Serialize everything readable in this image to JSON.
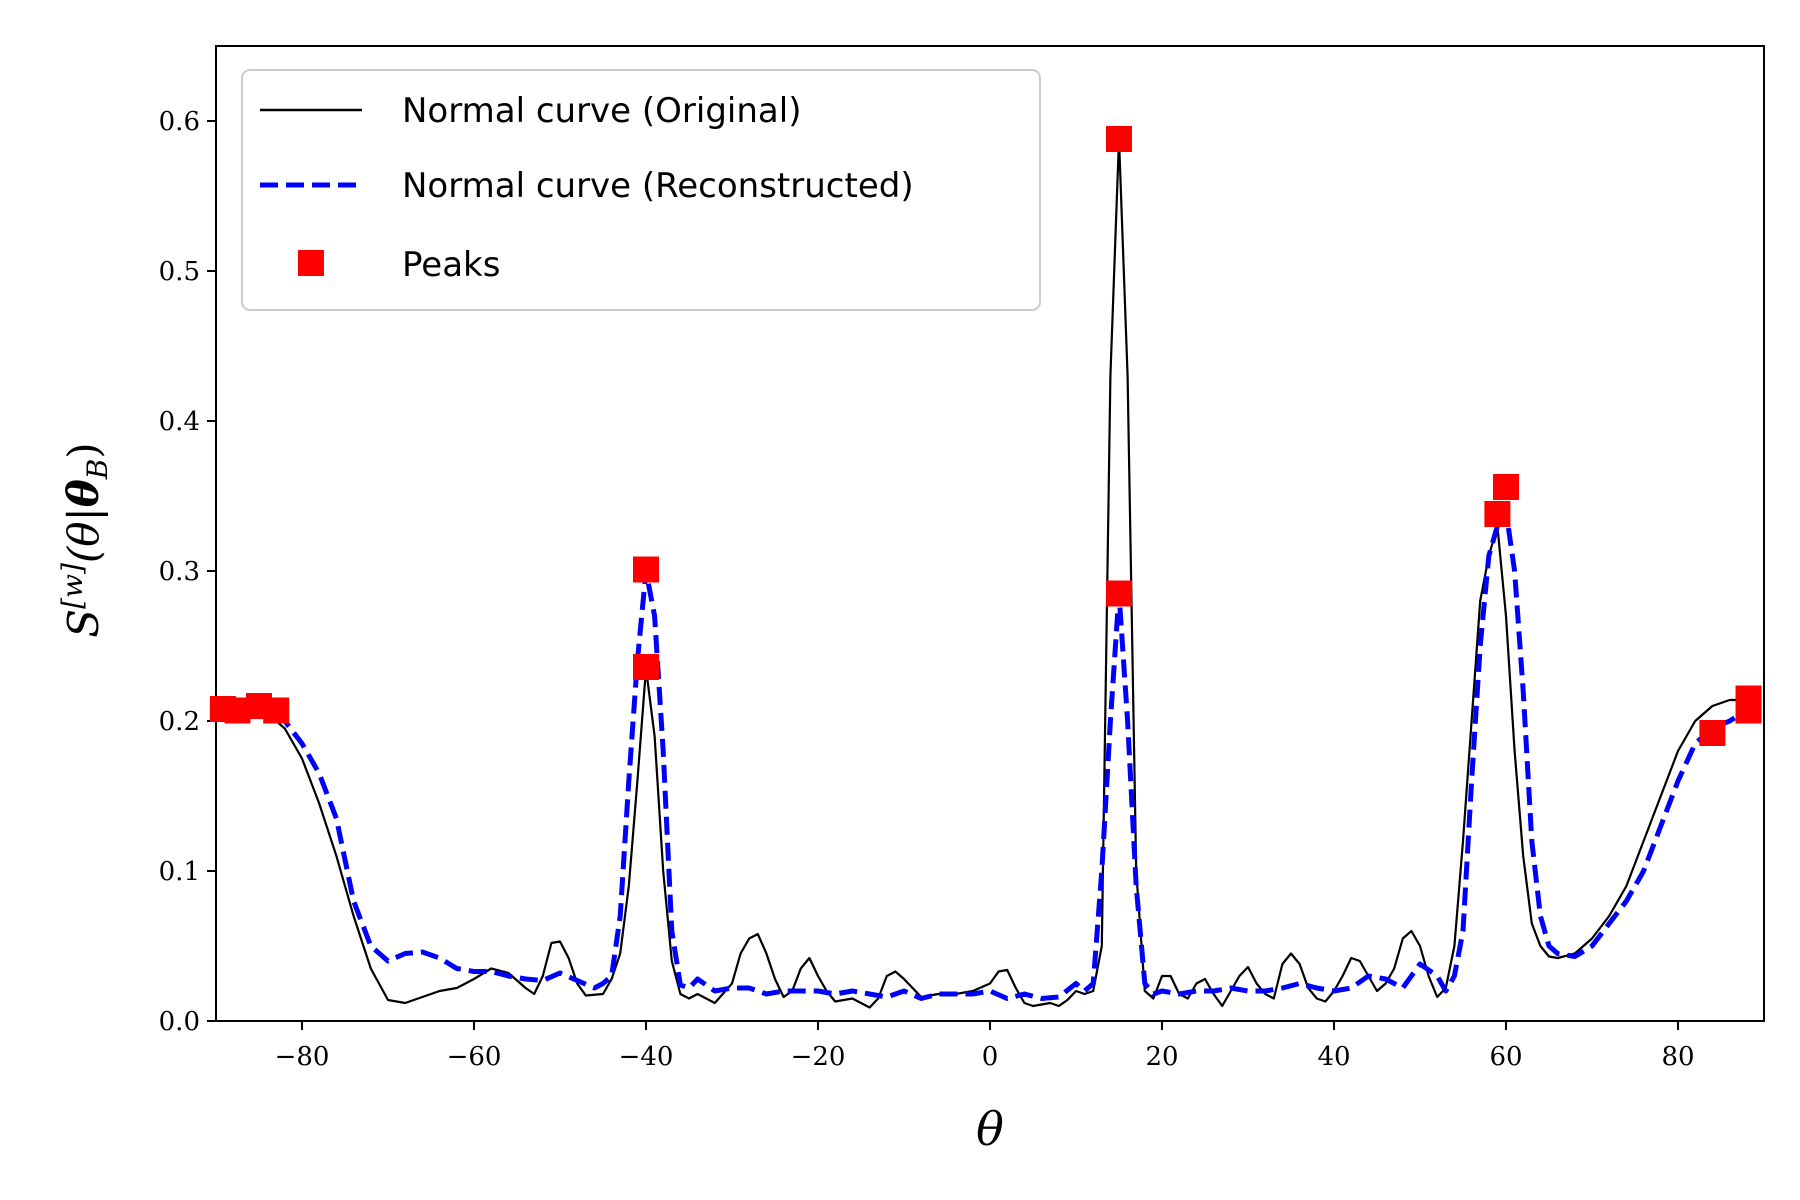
{
  "chart_data": {
    "type": "line",
    "xlabel": "θ",
    "ylabel": {
      "main": "S",
      "superscript": "[w]",
      "argument_open": "(θ|",
      "bold": "θ",
      "subscript": "B",
      "argument_close": ")"
    },
    "xlim": [
      -90,
      90
    ],
    "ylim": [
      0,
      0.65
    ],
    "xticks": [
      -80,
      -60,
      -40,
      -20,
      0,
      20,
      40,
      60,
      80
    ],
    "xtick_labels": [
      "−80",
      "−60",
      "−40",
      "−20",
      "0",
      "20",
      "40",
      "60",
      "80"
    ],
    "yticks": [
      0.0,
      0.1,
      0.2,
      0.3,
      0.4,
      0.5,
      0.6
    ],
    "ytick_labels": [
      "0.0",
      "0.1",
      "0.2",
      "0.3",
      "0.4",
      "0.5",
      "0.6"
    ],
    "legend_position": "top-left",
    "grid": false,
    "series": [
      {
        "name": "Normal curve (Original)",
        "style": "solid",
        "color": "#000000",
        "points": [
          [
            -89,
            0.208
          ],
          [
            -86,
            0.208
          ],
          [
            -84,
            0.205
          ],
          [
            -82,
            0.195
          ],
          [
            -80,
            0.175
          ],
          [
            -78,
            0.145
          ],
          [
            -76,
            0.11
          ],
          [
            -74,
            0.07
          ],
          [
            -72,
            0.035
          ],
          [
            -70,
            0.014
          ],
          [
            -68,
            0.012
          ],
          [
            -66,
            0.016
          ],
          [
            -64,
            0.02
          ],
          [
            -62,
            0.022
          ],
          [
            -60,
            0.028
          ],
          [
            -58,
            0.035
          ],
          [
            -56,
            0.032
          ],
          [
            -54,
            0.022
          ],
          [
            -53,
            0.018
          ],
          [
            -52,
            0.03
          ],
          [
            -51,
            0.052
          ],
          [
            -50,
            0.053
          ],
          [
            -49,
            0.042
          ],
          [
            -48,
            0.025
          ],
          [
            -47,
            0.017
          ],
          [
            -45,
            0.018
          ],
          [
            -44,
            0.028
          ],
          [
            -43,
            0.045
          ],
          [
            -42,
            0.09
          ],
          [
            -41,
            0.16
          ],
          [
            -40,
            0.235
          ],
          [
            -39,
            0.19
          ],
          [
            -38,
            0.1
          ],
          [
            -37,
            0.04
          ],
          [
            -36,
            0.018
          ],
          [
            -35,
            0.015
          ],
          [
            -34,
            0.018
          ],
          [
            -32,
            0.012
          ],
          [
            -30,
            0.025
          ],
          [
            -29,
            0.045
          ],
          [
            -28,
            0.055
          ],
          [
            -27,
            0.058
          ],
          [
            -26,
            0.045
          ],
          [
            -25,
            0.028
          ],
          [
            -24,
            0.016
          ],
          [
            -23,
            0.02
          ],
          [
            -22,
            0.035
          ],
          [
            -21,
            0.042
          ],
          [
            -20,
            0.03
          ],
          [
            -19,
            0.02
          ],
          [
            -18,
            0.013
          ],
          [
            -16,
            0.015
          ],
          [
            -14,
            0.009
          ],
          [
            -13,
            0.015
          ],
          [
            -12,
            0.03
          ],
          [
            -11,
            0.033
          ],
          [
            -10,
            0.028
          ],
          [
            -8,
            0.016
          ],
          [
            -6,
            0.018
          ],
          [
            -4,
            0.018
          ],
          [
            -2,
            0.02
          ],
          [
            0,
            0.025
          ],
          [
            1,
            0.033
          ],
          [
            2,
            0.034
          ],
          [
            3,
            0.022
          ],
          [
            4,
            0.012
          ],
          [
            5,
            0.01
          ],
          [
            6,
            0.011
          ],
          [
            7,
            0.012
          ],
          [
            8,
            0.01
          ],
          [
            9,
            0.014
          ],
          [
            10,
            0.02
          ],
          [
            11,
            0.018
          ],
          [
            12,
            0.02
          ],
          [
            13,
            0.05
          ],
          [
            14,
            0.43
          ],
          [
            15,
            0.588
          ],
          [
            16,
            0.43
          ],
          [
            17,
            0.1
          ],
          [
            18,
            0.02
          ],
          [
            19,
            0.015
          ],
          [
            20,
            0.03
          ],
          [
            21,
            0.03
          ],
          [
            22,
            0.018
          ],
          [
            23,
            0.015
          ],
          [
            24,
            0.025
          ],
          [
            25,
            0.028
          ],
          [
            26,
            0.018
          ],
          [
            27,
            0.01
          ],
          [
            28,
            0.02
          ],
          [
            29,
            0.03
          ],
          [
            30,
            0.036
          ],
          [
            31,
            0.025
          ],
          [
            32,
            0.018
          ],
          [
            33,
            0.015
          ],
          [
            34,
            0.038
          ],
          [
            35,
            0.045
          ],
          [
            36,
            0.038
          ],
          [
            37,
            0.022
          ],
          [
            38,
            0.015
          ],
          [
            39,
            0.013
          ],
          [
            40,
            0.02
          ],
          [
            41,
            0.03
          ],
          [
            42,
            0.042
          ],
          [
            43,
            0.04
          ],
          [
            44,
            0.03
          ],
          [
            45,
            0.02
          ],
          [
            46,
            0.025
          ],
          [
            47,
            0.035
          ],
          [
            48,
            0.055
          ],
          [
            49,
            0.06
          ],
          [
            50,
            0.05
          ],
          [
            51,
            0.03
          ],
          [
            52,
            0.016
          ],
          [
            53,
            0.022
          ],
          [
            54,
            0.05
          ],
          [
            55,
            0.12
          ],
          [
            56,
            0.2
          ],
          [
            57,
            0.28
          ],
          [
            58,
            0.31
          ],
          [
            59,
            0.33
          ],
          [
            60,
            0.27
          ],
          [
            61,
            0.18
          ],
          [
            62,
            0.11
          ],
          [
            63,
            0.065
          ],
          [
            64,
            0.05
          ],
          [
            65,
            0.043
          ],
          [
            66,
            0.042
          ],
          [
            68,
            0.045
          ],
          [
            70,
            0.055
          ],
          [
            72,
            0.07
          ],
          [
            74,
            0.09
          ],
          [
            76,
            0.12
          ],
          [
            78,
            0.15
          ],
          [
            80,
            0.18
          ],
          [
            82,
            0.2
          ],
          [
            84,
            0.21
          ],
          [
            86,
            0.214
          ],
          [
            88,
            0.214
          ]
        ]
      },
      {
        "name": "Normal curve (Reconstructed)",
        "style": "dashed",
        "color": "#0000ff",
        "points": [
          [
            -89,
            0.207
          ],
          [
            -86,
            0.207
          ],
          [
            -84,
            0.207
          ],
          [
            -82,
            0.2
          ],
          [
            -80,
            0.185
          ],
          [
            -78,
            0.165
          ],
          [
            -76,
            0.135
          ],
          [
            -74,
            0.08
          ],
          [
            -72,
            0.05
          ],
          [
            -70,
            0.04
          ],
          [
            -68,
            0.045
          ],
          [
            -66,
            0.046
          ],
          [
            -64,
            0.042
          ],
          [
            -62,
            0.035
          ],
          [
            -60,
            0.033
          ],
          [
            -58,
            0.033
          ],
          [
            -56,
            0.03
          ],
          [
            -54,
            0.028
          ],
          [
            -52,
            0.027
          ],
          [
            -50,
            0.032
          ],
          [
            -48,
            0.027
          ],
          [
            -46,
            0.022
          ],
          [
            -45,
            0.025
          ],
          [
            -44,
            0.03
          ],
          [
            -43,
            0.07
          ],
          [
            -42,
            0.16
          ],
          [
            -41,
            0.24
          ],
          [
            -40,
            0.3
          ],
          [
            -39,
            0.27
          ],
          [
            -38,
            0.18
          ],
          [
            -37,
            0.06
          ],
          [
            -36,
            0.024
          ],
          [
            -35,
            0.022
          ],
          [
            -34,
            0.028
          ],
          [
            -32,
            0.02
          ],
          [
            -30,
            0.022
          ],
          [
            -28,
            0.022
          ],
          [
            -26,
            0.018
          ],
          [
            -24,
            0.02
          ],
          [
            -22,
            0.02
          ],
          [
            -20,
            0.02
          ],
          [
            -18,
            0.018
          ],
          [
            -16,
            0.02
          ],
          [
            -14,
            0.018
          ],
          [
            -12,
            0.016
          ],
          [
            -10,
            0.02
          ],
          [
            -8,
            0.015
          ],
          [
            -6,
            0.018
          ],
          [
            -4,
            0.018
          ],
          [
            -2,
            0.018
          ],
          [
            0,
            0.02
          ],
          [
            2,
            0.015
          ],
          [
            4,
            0.018
          ],
          [
            6,
            0.015
          ],
          [
            8,
            0.016
          ],
          [
            10,
            0.025
          ],
          [
            11,
            0.02
          ],
          [
            12,
            0.025
          ],
          [
            13,
            0.1
          ],
          [
            14,
            0.2
          ],
          [
            15,
            0.285
          ],
          [
            16,
            0.2
          ],
          [
            17,
            0.09
          ],
          [
            18,
            0.025
          ],
          [
            19,
            0.018
          ],
          [
            20,
            0.02
          ],
          [
            22,
            0.018
          ],
          [
            24,
            0.02
          ],
          [
            26,
            0.02
          ],
          [
            28,
            0.022
          ],
          [
            30,
            0.02
          ],
          [
            32,
            0.02
          ],
          [
            34,
            0.022
          ],
          [
            36,
            0.025
          ],
          [
            38,
            0.022
          ],
          [
            40,
            0.02
          ],
          [
            42,
            0.022
          ],
          [
            44,
            0.03
          ],
          [
            46,
            0.028
          ],
          [
            48,
            0.022
          ],
          [
            50,
            0.038
          ],
          [
            52,
            0.03
          ],
          [
            53,
            0.02
          ],
          [
            54,
            0.03
          ],
          [
            55,
            0.06
          ],
          [
            56,
            0.16
          ],
          [
            57,
            0.25
          ],
          [
            58,
            0.31
          ],
          [
            59,
            0.33
          ],
          [
            60,
            0.34
          ],
          [
            61,
            0.3
          ],
          [
            62,
            0.22
          ],
          [
            63,
            0.12
          ],
          [
            64,
            0.07
          ],
          [
            65,
            0.05
          ],
          [
            66,
            0.045
          ],
          [
            68,
            0.043
          ],
          [
            70,
            0.05
          ],
          [
            72,
            0.065
          ],
          [
            74,
            0.08
          ],
          [
            76,
            0.1
          ],
          [
            78,
            0.13
          ],
          [
            80,
            0.16
          ],
          [
            82,
            0.185
          ],
          [
            84,
            0.195
          ],
          [
            86,
            0.2
          ],
          [
            88,
            0.207
          ]
        ]
      },
      {
        "name": "Peaks",
        "style": "markers",
        "color": "#ff0000",
        "points": [
          [
            -89.2,
            0.208
          ],
          [
            -87.5,
            0.207
          ],
          [
            -85.0,
            0.21
          ],
          [
            -83.0,
            0.207
          ],
          [
            -40.0,
            0.301
          ],
          [
            -40.0,
            0.236
          ],
          [
            15.0,
            0.588
          ],
          [
            15.0,
            0.285
          ],
          [
            59.0,
            0.338
          ],
          [
            60.0,
            0.356
          ],
          [
            84.0,
            0.192
          ],
          [
            88.2,
            0.207
          ],
          [
            88.2,
            0.215
          ]
        ]
      }
    ]
  }
}
